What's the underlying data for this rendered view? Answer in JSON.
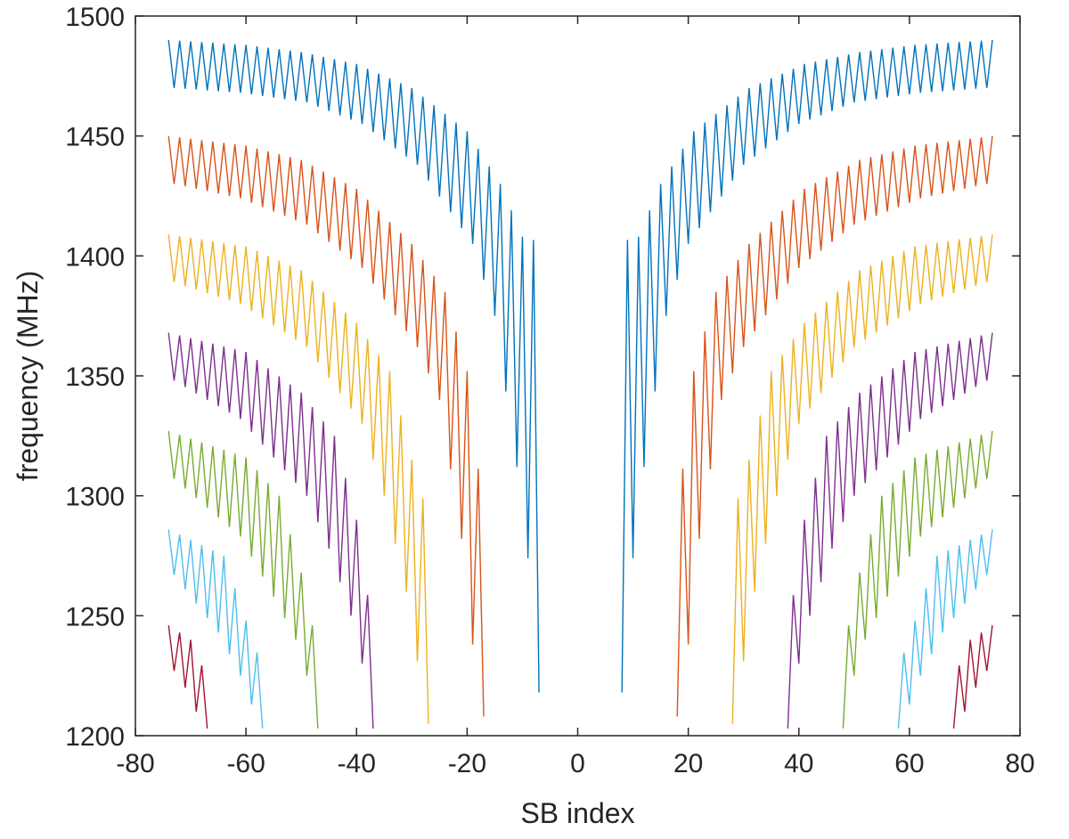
{
  "chart_data": {
    "type": "line",
    "title": "",
    "xlabel": "SB index",
    "ylabel": "frequency (MHz)",
    "xlim": [
      -80,
      80
    ],
    "ylim": [
      1200,
      1500
    ],
    "xticks": [
      -80,
      -60,
      -40,
      -20,
      0,
      20,
      40,
      60,
      80
    ],
    "yticks": [
      1200,
      1250,
      1300,
      1350,
      1400,
      1450,
      1500
    ],
    "xtick_labels": [
      "-80",
      "-60",
      "-40",
      "-20",
      "0",
      "20",
      "40",
      "60",
      "80"
    ],
    "ytick_labels": [
      "1200",
      "1250",
      "1300",
      "1350",
      "1400",
      "1450",
      "1500"
    ],
    "grid": false,
    "legend": "none",
    "note_on_series": "Each series is a zig-zag whose even SB index points lie on the upper envelope and odd SB index points on the lower envelope; values are sampled from the figure envelopes.",
    "series": [
      {
        "color": "#0072BD",
        "x_range": [
          -74,
          -7
        ],
        "x_range_mirror": [
          9,
          75
        ],
        "upper_envelope": {
          "x": [
            -74,
            -60,
            -50,
            -40,
            -30,
            -20,
            -14,
            -10,
            -7
          ],
          "y": [
            1490,
            1488,
            1485,
            1480,
            1470,
            1452,
            1430,
            1408,
            1406
          ]
        },
        "lower_envelope": {
          "x": [
            -73,
            -61,
            -49,
            -39,
            -29,
            -19,
            -15,
            -11,
            -9,
            -8
          ],
          "y": [
            1470,
            1468,
            1464,
            1455,
            1438,
            1405,
            1375,
            1312,
            1274,
            1218
          ]
        }
      },
      {
        "color": "#D95319",
        "x_range": [
          -74,
          -17
        ],
        "x_range_mirror": [
          18,
          75
        ],
        "upper_envelope": {
          "x": [
            -74,
            -60,
            -50,
            -40,
            -30,
            -24,
            -20,
            -17
          ],
          "y": [
            1450,
            1446,
            1440,
            1428,
            1405,
            1385,
            1352,
            1291
          ]
        },
        "lower_envelope": {
          "x": [
            -73,
            -61,
            -49,
            -39,
            -29,
            -25,
            -21,
            -19,
            -18
          ],
          "y": [
            1430,
            1424,
            1413,
            1395,
            1362,
            1340,
            1282,
            1238,
            1208
          ]
        }
      },
      {
        "color": "#EDB120",
        "x_range": [
          -74,
          -27
        ],
        "x_range_mirror": [
          28,
          75
        ],
        "upper_envelope": {
          "x": [
            -74,
            -60,
            -50,
            -40,
            -34,
            -30,
            -27
          ],
          "y": [
            1409,
            1404,
            1394,
            1372,
            1352,
            1315,
            1291
          ]
        },
        "lower_envelope": {
          "x": [
            -73,
            -61,
            -49,
            -39,
            -35,
            -31,
            -29,
            -28
          ],
          "y": [
            1389,
            1380,
            1362,
            1330,
            1300,
            1260,
            1231,
            1205
          ]
        }
      },
      {
        "color": "#7E2F8E",
        "x_range": [
          -74,
          -37
        ],
        "x_range_mirror": [
          38,
          75
        ],
        "upper_envelope": {
          "x": [
            -74,
            -60,
            -50,
            -44,
            -40,
            -37
          ],
          "y": [
            1368,
            1360,
            1343,
            1325,
            1290,
            1243
          ]
        },
        "lower_envelope": {
          "x": [
            -73,
            -61,
            -49,
            -45,
            -41,
            -39,
            -38
          ],
          "y": [
            1348,
            1332,
            1300,
            1278,
            1250,
            1230,
            1203
          ]
        }
      },
      {
        "color": "#77AC30",
        "x_range": [
          -74,
          -47
        ],
        "x_range_mirror": [
          48,
          75
        ],
        "upper_envelope": {
          "x": [
            -74,
            -60,
            -54,
            -50,
            -47
          ],
          "y": [
            1327,
            1316,
            1300,
            1268,
            1235
          ]
        },
        "lower_envelope": {
          "x": [
            -73,
            -61,
            -55,
            -51,
            -49,
            -48
          ],
          "y": [
            1307,
            1283,
            1258,
            1240,
            1225,
            1203
          ]
        }
      },
      {
        "color": "#4DBEEE",
        "x_range": [
          -74,
          -57
        ],
        "x_range_mirror": [
          58,
          75
        ],
        "upper_envelope": {
          "x": [
            -74,
            -64,
            -60,
            -57
          ],
          "y": [
            1286,
            1275,
            1248,
            1228
          ]
        },
        "lower_envelope": {
          "x": [
            -73,
            -65,
            -61,
            -59,
            -58
          ],
          "y": [
            1267,
            1243,
            1225,
            1213,
            1203
          ]
        }
      },
      {
        "color": "#A2142F",
        "x_range": [
          -74,
          -67
        ],
        "x_range_mirror": [
          68,
          75
        ],
        "upper_envelope": {
          "x": [
            -74,
            -70,
            -67
          ],
          "y": [
            1246,
            1240,
            1224
          ]
        },
        "lower_envelope": {
          "x": [
            -73,
            -71,
            -69,
            -68
          ],
          "y": [
            1227,
            1220,
            1210,
            1203
          ]
        }
      }
    ]
  }
}
